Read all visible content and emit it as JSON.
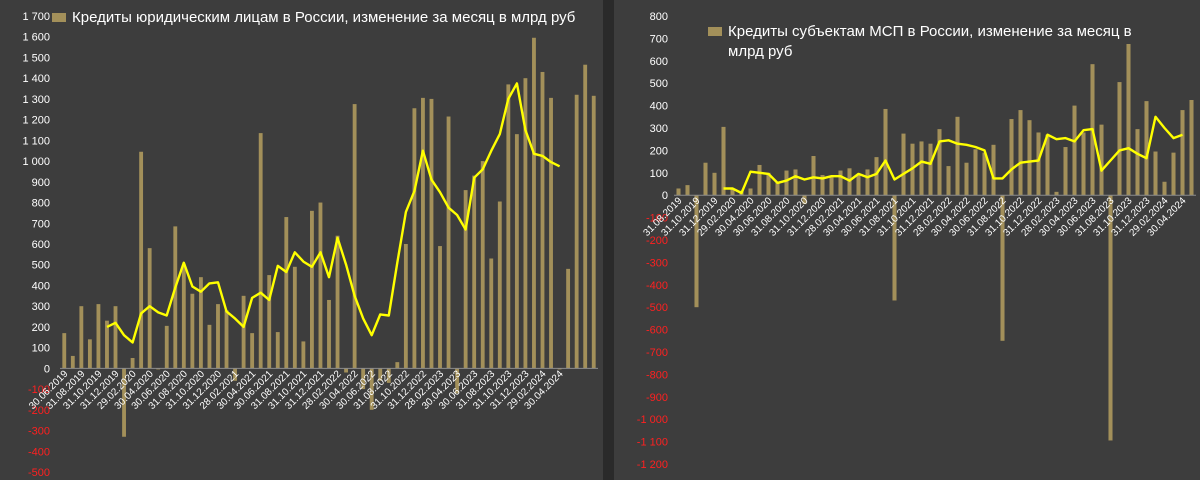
{
  "colors": {
    "bar": "#a3905a",
    "line": "#ffff00",
    "negative_tick": "#ff2020",
    "tick": "#ffffff",
    "background": "#3d3d3d"
  },
  "chart_data": [
    {
      "type": "bar",
      "legend": "Кредиты юридическим лицам в России, изменение за месяц в млрд руб",
      "legend_placement": "top-left",
      "ylim": [
        -500,
        1700
      ],
      "yticks": [
        -500,
        -400,
        -300,
        -200,
        -100,
        0,
        100,
        200,
        300,
        400,
        500,
        600,
        700,
        800,
        900,
        1000,
        1100,
        1200,
        1300,
        1400,
        1500,
        1600,
        1700
      ],
      "ytick_labels": [
        "-500",
        "-400",
        "-300",
        "-200",
        "-100",
        "0",
        "100",
        "200",
        "300",
        "400",
        "500",
        "600",
        "700",
        "800",
        "900",
        "1 000",
        "1 100",
        "1 200",
        "1 300",
        "1 400",
        "1 500",
        "1 600",
        "1 700"
      ],
      "xtick_labels": [
        "30.06.2019",
        "31.08.2019",
        "31.10.2019",
        "31.12.2019",
        "29.02.2020",
        "30.04.2020",
        "30.06.2020",
        "31.08.2020",
        "31.10.2020",
        "31.12.2020",
        "28.02.2021",
        "30.04.2021",
        "30.06.2021",
        "31.08.2021",
        "31.10.2021",
        "31.12.2021",
        "28.02.2022",
        "30.04.2022",
        "30.06.2022",
        "31.08.2022",
        "31.10.2022",
        "31.12.2022",
        "28.02.2023",
        "30.04.2023",
        "30.06.2023",
        "31.08.2023",
        "31.10.2023",
        "31.12.2023",
        "29.02.2024",
        "30.04.2024"
      ],
      "xtick_every": 2,
      "grid": false,
      "series": [
        {
          "kind": "bar",
          "values": [
            170,
            60,
            300,
            140,
            310,
            230,
            300,
            -330,
            50,
            1045,
            580,
            -5,
            205,
            685,
            500,
            360,
            440,
            210,
            310,
            280,
            -60,
            350,
            170,
            1135,
            450,
            175,
            730,
            490,
            130,
            760,
            800,
            330,
            640,
            -20,
            1275,
            -100,
            -200,
            -60,
            -70,
            30,
            600,
            1255,
            1305,
            1300,
            590,
            1215,
            -120,
            860,
            930,
            1000,
            530,
            805,
            1370,
            1130,
            1400,
            1595,
            1430,
            1305,
            -5,
            480,
            1320,
            1465,
            1315
          ]
        },
        {
          "kind": "line",
          "start_index": 5,
          "values": [
            200,
            220,
            160,
            125,
            265,
            300,
            270,
            255,
            390,
            510,
            395,
            370,
            410,
            415,
            275,
            240,
            200,
            340,
            365,
            330,
            495,
            465,
            560,
            515,
            490,
            560,
            440,
            630,
            500,
            350,
            240,
            160,
            260,
            255,
            510,
            755,
            855,
            1050,
            910,
            850,
            775,
            740,
            670,
            920,
            960,
            1050,
            1130,
            1300,
            1375,
            1150,
            1035,
            1025,
            995,
            975
          ]
        }
      ]
    },
    {
      "type": "bar",
      "legend": "Кредиты субъектам МСП  в России, изменение за месяц в млрд руб",
      "legend_placement": "top-left",
      "ylim": [
        -1200,
        800
      ],
      "yticks": [
        -1200,
        -1100,
        -1000,
        -900,
        -800,
        -700,
        -600,
        -500,
        -400,
        -300,
        -200,
        -100,
        0,
        100,
        200,
        300,
        400,
        500,
        600,
        700,
        800
      ],
      "ytick_labels": [
        "-1 200",
        "-1 100",
        "-1 000",
        "-900",
        "-800",
        "-700",
        "-600",
        "-500",
        "-400",
        "-300",
        "-200",
        "-100",
        "0",
        "100",
        "200",
        "300",
        "400",
        "500",
        "600",
        "700",
        "800"
      ],
      "xtick_labels": [
        "31.08.2019",
        "31.10.2019",
        "31.12.2019",
        "29.02.2020",
        "30.04.2020",
        "30.06.2020",
        "31.08.2020",
        "31.10.2020",
        "31.12.2020",
        "28.02.2021",
        "30.04.2021",
        "30.06.2021",
        "31.08.2021",
        "31.10.2021",
        "31.12.2021",
        "28.02.2022",
        "30.04.2022",
        "30.06.2022",
        "31.08.2022",
        "31.10.2022",
        "31.12.2022",
        "28.02.2023",
        "30.04.2023",
        "30.06.2023",
        "31.08.2023",
        "31.10.2023",
        "31.12.2023",
        "29.02.2024",
        "30.04.2024"
      ],
      "xtick_every": 2,
      "grid": false,
      "series": [
        {
          "kind": "bar",
          "values": [
            30,
            45,
            -500,
            145,
            100,
            305,
            30,
            20,
            30,
            135,
            100,
            60,
            110,
            115,
            -40,
            175,
            90,
            80,
            110,
            120,
            90,
            115,
            170,
            385,
            -470,
            275,
            230,
            240,
            230,
            295,
            130,
            350,
            145,
            205,
            190,
            225,
            -650,
            340,
            380,
            335,
            280,
            270,
            15,
            215,
            400,
            280,
            585,
            315,
            -1095,
            505,
            675,
            295,
            420,
            195,
            60,
            190,
            380,
            425
          ]
        },
        {
          "kind": "line",
          "start_index": 5,
          "values": [
            30,
            30,
            10,
            105,
            100,
            95,
            55,
            65,
            85,
            70,
            80,
            75,
            85,
            85,
            65,
            95,
            80,
            95,
            155,
            70,
            95,
            120,
            150,
            140,
            240,
            245,
            230,
            225,
            215,
            200,
            75,
            75,
            115,
            145,
            150,
            155,
            270,
            250,
            255,
            240,
            290,
            295,
            110,
            155,
            200,
            210,
            185,
            165,
            350,
            300,
            255,
            270
          ]
        }
      ]
    }
  ]
}
